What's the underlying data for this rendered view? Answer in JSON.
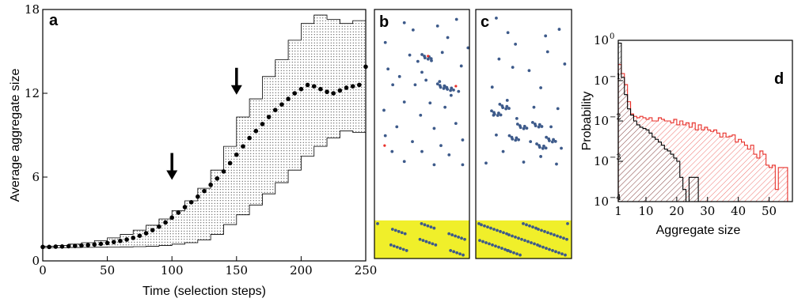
{
  "panels": {
    "a": "a",
    "b": "b",
    "c": "c",
    "d": "d"
  },
  "chart_data": [
    {
      "panel": "a",
      "type": "scatter",
      "xlabel": "Time (selection steps)",
      "ylabel": "Average aggregate size",
      "xlim": [
        0,
        250
      ],
      "ylim": [
        0,
        18
      ],
      "xticks": [
        0,
        50,
        100,
        150,
        200,
        250
      ],
      "yticks": [
        0,
        6,
        12,
        18
      ],
      "grid": false,
      "series": [
        {
          "marker": "filled-circle",
          "x": [
            0,
            5,
            10,
            15,
            20,
            25,
            30,
            35,
            40,
            45,
            50,
            55,
            60,
            65,
            70,
            75,
            80,
            85,
            90,
            95,
            100,
            105,
            110,
            115,
            120,
            125,
            130,
            135,
            140,
            145,
            150,
            155,
            160,
            165,
            170,
            175,
            180,
            185,
            190,
            195,
            200,
            205,
            210,
            215,
            220,
            225,
            230,
            235,
            240,
            245,
            250
          ],
          "y": [
            1.0,
            1.0,
            1.02,
            1.03,
            1.05,
            1.07,
            1.1,
            1.13,
            1.17,
            1.22,
            1.28,
            1.35,
            1.43,
            1.53,
            1.65,
            1.8,
            1.98,
            2.2,
            2.45,
            2.75,
            3.1,
            3.45,
            3.85,
            4.2,
            4.6,
            5.0,
            5.45,
            5.9,
            6.4,
            7.0,
            7.6,
            8.2,
            8.8,
            9.3,
            9.8,
            10.3,
            10.8,
            11.2,
            11.6,
            12.0,
            12.3,
            12.6,
            12.5,
            12.3,
            12.1,
            12.0,
            12.2,
            12.4,
            12.5,
            12.6,
            13.9
          ]
        },
        {
          "name": "",
          "type": "band",
          "x": [
            0,
            10,
            20,
            30,
            40,
            50,
            60,
            70,
            80,
            90,
            100,
            110,
            120,
            130,
            140,
            150,
            160,
            170,
            180,
            190,
            200,
            210,
            220,
            230,
            240,
            250
          ],
          "upper": [
            1.05,
            1.1,
            1.2,
            1.3,
            1.45,
            1.65,
            1.9,
            2.2,
            2.55,
            3.0,
            3.6,
            4.3,
            5.2,
            6.5,
            8.2,
            10.3,
            11.6,
            13.2,
            14.4,
            15.8,
            17.0,
            17.6,
            17.3,
            17.0,
            17.2,
            17.4
          ],
          "lower": [
            0.95,
            0.95,
            0.96,
            0.97,
            0.98,
            0.99,
            1.0,
            1.02,
            1.05,
            1.1,
            1.2,
            1.3,
            1.5,
            1.9,
            2.6,
            3.3,
            4.0,
            4.8,
            5.6,
            6.5,
            7.5,
            8.2,
            8.8,
            9.3,
            9.2,
            10.0
          ]
        }
      ],
      "annotations": [
        {
          "type": "arrow-down",
          "x": 100,
          "y": 5.8
        },
        {
          "type": "arrow-down",
          "x": 150,
          "y": 11.9
        }
      ]
    },
    {
      "panel": "d",
      "type": "bar",
      "xlabel": "Aggregate size",
      "ylabel": "Probability",
      "yscale": "log",
      "xlim": [
        1,
        55
      ],
      "ylim": [
        0.0001,
        1
      ],
      "xticks": [
        1,
        10,
        20,
        30,
        40,
        50
      ],
      "ytick_labels": [
        {
          "base": "10",
          "exp": "0",
          "value": 1
        },
        {
          "base": "10",
          "exp": "−1",
          "value": 0.1
        },
        {
          "base": "10",
          "exp": "−2",
          "value": 0.01
        },
        {
          "base": "10",
          "exp": "−3",
          "value": 0.001
        },
        {
          "base": "10",
          "exp": "−4",
          "value": 0.0001
        }
      ],
      "series": [
        {
          "color": "#000000",
          "bins": [
            1,
            2,
            3,
            4,
            5,
            6,
            7,
            8,
            9,
            10,
            11,
            12,
            13,
            14,
            15,
            16,
            17,
            18,
            19,
            20,
            21,
            22,
            23,
            24,
            25,
            26,
            27
          ],
          "values": [
            0.85,
            0.12,
            0.045,
            0.02,
            0.014,
            0.01,
            0.008,
            0.007,
            0.0065,
            0.006,
            0.005,
            0.004,
            0.0035,
            0.003,
            0.0025,
            0.002,
            0.0018,
            0.0015,
            0.0012,
            0.001,
            0.0004,
            0.0002,
            0.0001,
            0.0004,
            0.0004,
            0.0004,
            0.0001
          ]
        },
        {
          "color": "#e8302a",
          "bins": [
            1,
            2,
            3,
            4,
            5,
            6,
            7,
            8,
            9,
            10,
            11,
            12,
            13,
            14,
            15,
            16,
            17,
            18,
            19,
            20,
            21,
            22,
            23,
            24,
            25,
            26,
            27,
            28,
            29,
            30,
            31,
            32,
            33,
            34,
            35,
            36,
            37,
            38,
            39,
            40,
            41,
            42,
            43,
            44,
            45,
            46,
            47,
            48,
            49,
            50,
            51,
            52,
            53,
            54,
            55
          ],
          "values": [
            0.25,
            0.15,
            0.08,
            0.03,
            0.015,
            0.013,
            0.012,
            0.013,
            0.012,
            0.011,
            0.012,
            0.01,
            0.01,
            0.012,
            0.011,
            0.01,
            0.01,
            0.009,
            0.011,
            0.008,
            0.01,
            0.008,
            0.009,
            0.007,
            0.009,
            0.006,
            0.008,
            0.006,
            0.007,
            0.006,
            0.0055,
            0.006,
            0.005,
            0.004,
            0.005,
            0.004,
            0.0042,
            0.0045,
            0.003,
            0.0035,
            0.003,
            0.0025,
            0.002,
            0.0025,
            0.0015,
            0.0012,
            0.0018,
            0.0015,
            0.0008,
            0.0007,
            0.0008,
            0.0002,
            0.0007,
            0.0007,
            0.0007
          ]
        }
      ]
    }
  ],
  "snapshots": {
    "b": {
      "dot_color": "#3d5a8a",
      "highlight_color": "#e8302a",
      "band_color": "#f0ef2a",
      "particles": [
        [
          44,
          40
        ],
        [
          93,
          50
        ],
        [
          121,
          30
        ],
        [
          57,
          62
        ],
        [
          108,
          85
        ],
        [
          16,
          100
        ],
        [
          52,
          138
        ],
        [
          138,
          116
        ],
        [
          64,
          157
        ],
        [
          84,
          155
        ],
        [
          76,
          214
        ],
        [
          100,
          130
        ],
        [
          128,
          171
        ],
        [
          27,
          228
        ],
        [
          60,
          228
        ],
        [
          113,
          260
        ],
        [
          37,
          203
        ],
        [
          96,
          218
        ],
        [
          70,
          190
        ],
        [
          20,
          180
        ],
        [
          124,
          248
        ],
        [
          44,
          280
        ],
        [
          82,
          283
        ],
        [
          104,
          296
        ],
        [
          14,
          305
        ],
        [
          68,
          320
        ],
        [
          120,
          345
        ],
        [
          33,
          355
        ],
        [
          88,
          360
        ],
        [
          16,
          382
        ],
        [
          56,
          400
        ],
        [
          98,
          412
        ],
        [
          130,
          395
        ],
        [
          26,
          430
        ],
        [
          70,
          430
        ],
        [
          110,
          440
        ],
        [
          44,
          460
        ],
        [
          88,
          470
        ],
        [
          130,
          470
        ]
      ],
      "clusters": [
        [
          77,
          143
        ],
        [
          110,
          238
        ],
        [
          100,
          232
        ]
      ],
      "highlights": [
        [
          79,
          141
        ],
        [
          120,
          232
        ],
        [
          15,
          412
        ]
      ]
    },
    "c": {
      "dot_color": "#3d5a8a",
      "band_color": "#f0ef2a",
      "particles": [
        [
          30,
          26
        ],
        [
          47,
          70
        ],
        [
          102,
          80
        ],
        [
          58,
          105
        ],
        [
          122,
          60
        ],
        [
          34,
          150
        ],
        [
          105,
          128
        ],
        [
          78,
          185
        ],
        [
          130,
          165
        ],
        [
          54,
          175
        ],
        [
          24,
          235
        ],
        [
          95,
          237
        ],
        [
          120,
          300
        ],
        [
          46,
          275
        ],
        [
          85,
          296
        ],
        [
          26,
          320
        ],
        [
          60,
          330
        ],
        [
          110,
          355
        ],
        [
          30,
          380
        ],
        [
          80,
          400
        ],
        [
          125,
          420
        ],
        [
          40,
          430
        ],
        [
          95,
          445
        ],
        [
          15,
          465
        ],
        [
          70,
          462
        ],
        [
          118,
          468
        ]
      ],
      "clusters": [
        [
          42,
          150
        ],
        [
          68,
          210
        ],
        [
          90,
          205
        ],
        [
          56,
          245
        ],
        [
          96,
          270
        ],
        [
          110,
          250
        ],
        [
          30,
          170
        ]
      ]
    }
  }
}
